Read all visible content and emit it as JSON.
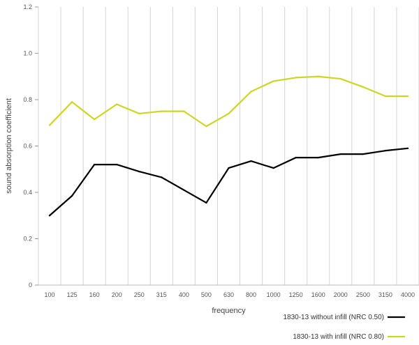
{
  "chart_data": {
    "type": "line",
    "xlabel": "frequency",
    "ylabel": "sound absorption coefficient",
    "categories": [
      "100",
      "125",
      "160",
      "200",
      "250",
      "315",
      "400",
      "500",
      "630",
      "800",
      "1000",
      "1250",
      "1600",
      "2000",
      "2500",
      "3150",
      "4000"
    ],
    "ylim": [
      0,
      1.2
    ],
    "yticks": [
      "0",
      "0.2",
      "0.4",
      "0.6",
      "0.8",
      "1.0",
      "1.2"
    ],
    "grid": true,
    "legend_position": "bottom-right",
    "series": [
      {
        "name": "1830-13 without infill (NRC 0.50)",
        "color": "#000000",
        "values": [
          0.3,
          0.385,
          0.52,
          0.52,
          0.49,
          0.465,
          0.41,
          0.355,
          0.505,
          0.535,
          0.505,
          0.55,
          0.55,
          0.565,
          0.565,
          0.58,
          0.59
        ]
      },
      {
        "name": "1830-13 with infill (NRC 0.80)",
        "color": "#cdd624",
        "values": [
          0.69,
          0.79,
          0.715,
          0.78,
          0.74,
          0.75,
          0.75,
          0.685,
          0.74,
          0.835,
          0.88,
          0.895,
          0.9,
          0.89,
          0.855,
          0.815,
          0.815
        ]
      }
    ]
  }
}
